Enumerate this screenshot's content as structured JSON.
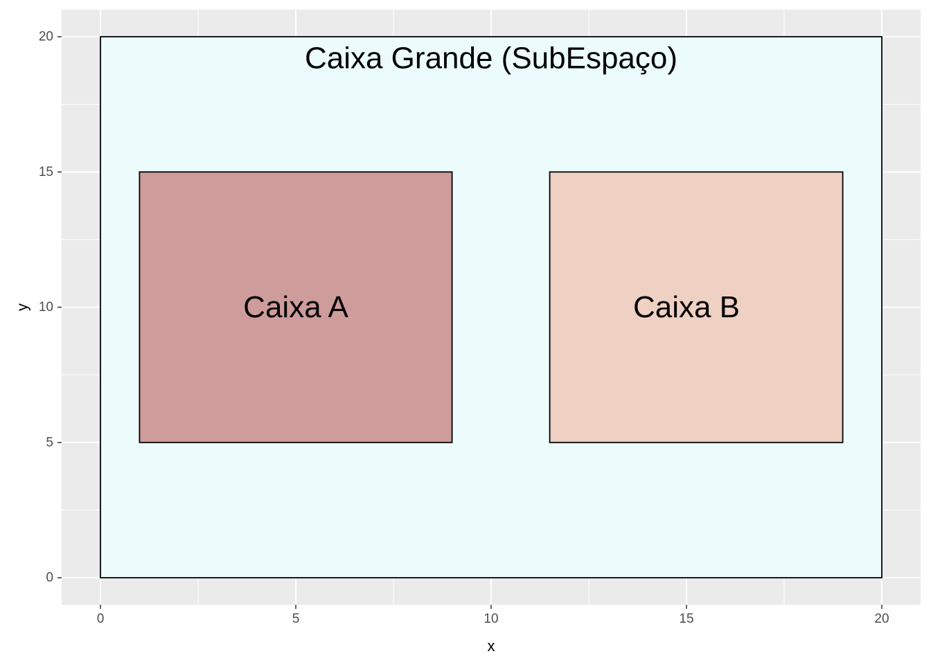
{
  "chart_data": {
    "type": "rect",
    "xlabel": "x",
    "ylabel": "y",
    "xlim": [
      0,
      20
    ],
    "ylim": [
      0,
      20
    ],
    "x_ticks": [
      0,
      5,
      10,
      15,
      20
    ],
    "y_ticks": [
      0,
      5,
      10,
      15,
      20
    ],
    "grid": true,
    "legend": "none",
    "panel_background": "#ebebeb",
    "rects": [
      {
        "label": "Caixa Grande (SubEspaço)",
        "xmin": 0,
        "xmax": 20,
        "ymin": 0,
        "ymax": 20,
        "fill": "#ebfcfc",
        "label_x": 10,
        "label_y": 19.2
      },
      {
        "label": "Caixa A",
        "xmin": 1,
        "xmax": 9,
        "ymin": 5,
        "ymax": 15,
        "fill": "#cc9494",
        "label_x": 5,
        "label_y": 10
      },
      {
        "label": "Caixa B",
        "xmin": 11.5,
        "xmax": 19,
        "ymin": 5,
        "ymax": 15,
        "fill": "#eecdbe",
        "label_x": 15,
        "label_y": 10
      }
    ]
  }
}
